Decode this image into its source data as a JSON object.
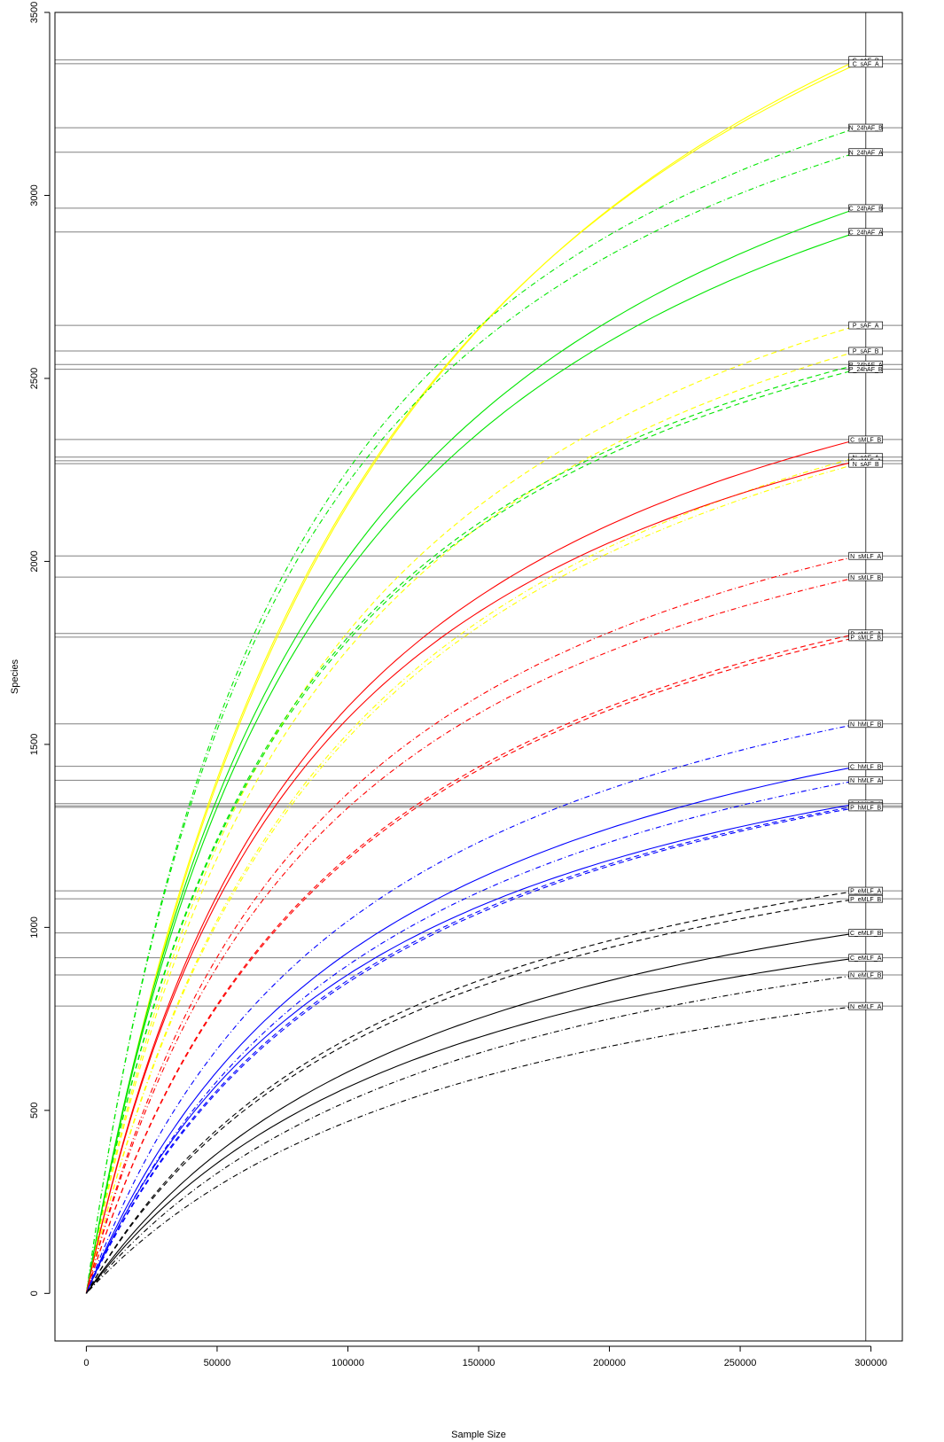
{
  "chart_data": {
    "type": "line",
    "title": "",
    "xlabel": "Sample Size",
    "ylabel": "Species",
    "xlim": [
      -12000,
      312000
    ],
    "ylim": [
      -130,
      3500
    ],
    "x_ticks": [
      0,
      50000,
      100000,
      150000,
      200000,
      250000,
      300000
    ],
    "y_ticks": [
      0,
      500,
      1000,
      1500,
      2000,
      2500,
      3000,
      3500
    ],
    "grid": false,
    "legend": "none",
    "sample_depth_line_x": 298000,
    "curve_end_x": 295000,
    "series": [
      {
        "name": "C_sAF_B",
        "color": "#ffff00",
        "style": "solid",
        "final_species": 3370,
        "k": 120000
      },
      {
        "name": "C_sAF_A",
        "color": "#ffff00",
        "style": "solid",
        "final_species": 3360,
        "k": 117000
      },
      {
        "name": "N_24hAF_B",
        "color": "#00e600",
        "style": "dotdash",
        "final_species": 3185,
        "k": 80000
      },
      {
        "name": "N_24hAF_A",
        "color": "#00e600",
        "style": "dotdash",
        "final_species": 3118,
        "k": 78000
      },
      {
        "name": "C_24hAF_B",
        "color": "#00e600",
        "style": "solid",
        "final_species": 2965,
        "k": 95000
      },
      {
        "name": "C_24hAF_A",
        "color": "#00e600",
        "style": "solid",
        "final_species": 2900,
        "k": 94000
      },
      {
        "name": "P_sAF_A",
        "color": "#ffff00",
        "style": "dashed",
        "final_species": 2645,
        "k": 92000
      },
      {
        "name": "P_sAF_B",
        "color": "#ffff00",
        "style": "dashed",
        "final_species": 2575,
        "k": 92000
      },
      {
        "name": "P_24hAF_A",
        "color": "#00e600",
        "style": "dashed",
        "final_species": 2538,
        "k": 80000
      },
      {
        "name": "P_24hAF_B",
        "color": "#00e600",
        "style": "dashed",
        "final_species": 2525,
        "k": 80000
      },
      {
        "name": "C_sMLF_B",
        "color": "#ff0000",
        "style": "solid",
        "final_species": 2333,
        "k": 90000
      },
      {
        "name": "N_sAF_A",
        "color": "#ffff00",
        "style": "dotdash",
        "final_species": 2285,
        "k": 100000
      },
      {
        "name": "C_sMLF_A",
        "color": "#ff0000",
        "style": "solid",
        "final_species": 2275,
        "k": 88000
      },
      {
        "name": "N_sAF_B",
        "color": "#ffff00",
        "style": "dotdash",
        "final_species": 2267,
        "k": 100000
      },
      {
        "name": "N_sMLF_A",
        "color": "#ff0000",
        "style": "dotdash",
        "final_species": 2015,
        "k": 95000
      },
      {
        "name": "N_sMLF_B",
        "color": "#ff0000",
        "style": "dotdash",
        "final_species": 1957,
        "k": 95000
      },
      {
        "name": "P_sMLF_A",
        "color": "#ff0000",
        "style": "dashed",
        "final_species": 1803,
        "k": 105000
      },
      {
        "name": "P_sMLF_B",
        "color": "#ff0000",
        "style": "dashed",
        "final_species": 1793,
        "k": 105000
      },
      {
        "name": "N_hMLF_B",
        "color": "#0000ff",
        "style": "dotdash",
        "final_species": 1556,
        "k": 110000
      },
      {
        "name": "C_hMLF_B",
        "color": "#0000ff",
        "style": "solid",
        "final_species": 1440,
        "k": 115000
      },
      {
        "name": "N_hMLF_A",
        "color": "#0000ff",
        "style": "dotdash",
        "final_species": 1402,
        "k": 120000
      },
      {
        "name": "C_hMLF_A",
        "color": "#0000ff",
        "style": "solid",
        "final_species": 1338,
        "k": 112000
      },
      {
        "name": "P_hMLF_A",
        "color": "#0000ff",
        "style": "dashed",
        "final_species": 1332,
        "k": 118000
      },
      {
        "name": "P_hMLF_B",
        "color": "#0000ff",
        "style": "dashed",
        "final_species": 1328,
        "k": 120000
      },
      {
        "name": "P_eMLF_A",
        "color": "#000000",
        "style": "dashed",
        "final_species": 1100,
        "k": 125000
      },
      {
        "name": "P_eMLF_B",
        "color": "#000000",
        "style": "dashed",
        "final_species": 1078,
        "k": 125000
      },
      {
        "name": "C_eMLF_B",
        "color": "#000000",
        "style": "solid",
        "final_species": 985,
        "k": 140000
      },
      {
        "name": "C_eMLF_A",
        "color": "#000000",
        "style": "solid",
        "final_species": 917,
        "k": 140000
      },
      {
        "name": "N_eMLF_B",
        "color": "#000000",
        "style": "dotdash",
        "final_species": 870,
        "k": 150000
      },
      {
        "name": "N_eMLF_A",
        "color": "#000000",
        "style": "dotdash",
        "final_species": 785,
        "k": 155000
      }
    ]
  }
}
